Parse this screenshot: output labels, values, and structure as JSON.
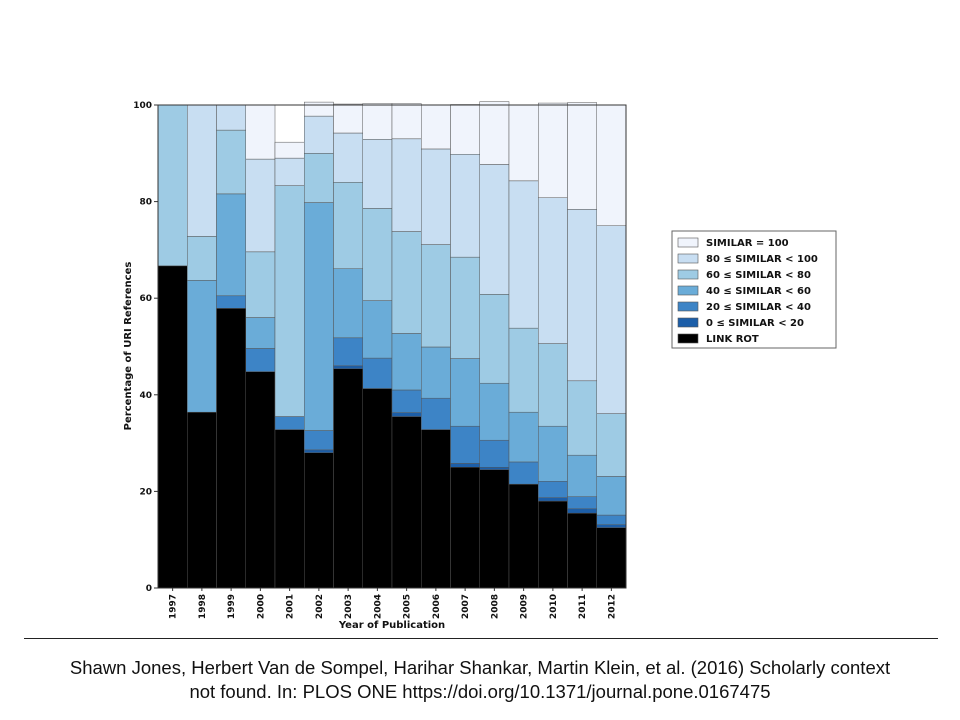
{
  "chart_data": {
    "type": "bar",
    "stacked": true,
    "xlabel": "Year of Publication",
    "ylabel": "Percentage of URI References",
    "ylim": [
      0,
      100
    ],
    "yticks": [
      0,
      20,
      40,
      60,
      80,
      100
    ],
    "categories": [
      "1997",
      "1998",
      "1999",
      "2000",
      "2001",
      "2002",
      "2003",
      "2004",
      "2005",
      "2006",
      "2007",
      "2008",
      "2009",
      "2010",
      "2011",
      "2012"
    ],
    "series": [
      {
        "name": "LINK ROT",
        "color": "#000000",
        "values": [
          66.7,
          36.4,
          57.9,
          44.8,
          32.8,
          28.0,
          45.4,
          41.3,
          35.5,
          32.8,
          25.0,
          24.5,
          21.5,
          18.0,
          15.5,
          12.5
        ]
      },
      {
        "name": "0 ≤ SIMILAR < 20",
        "color": "#1c5ea8",
        "values": [
          0.0,
          0.0,
          0.0,
          0.0,
          0.0,
          0.6,
          0.6,
          0.0,
          0.8,
          0.0,
          0.8,
          0.5,
          0.0,
          0.7,
          0.9,
          0.6
        ]
      },
      {
        "name": "20 ≤ SIMILAR < 40",
        "color": "#3d84c6",
        "values": [
          0.0,
          0.0,
          2.6,
          4.8,
          2.7,
          4.0,
          5.8,
          6.3,
          4.7,
          6.5,
          7.7,
          5.6,
          4.6,
          3.4,
          2.5,
          2.0
        ]
      },
      {
        "name": "40 ≤ SIMILAR < 60",
        "color": "#6aacd8",
        "values": [
          0.0,
          27.3,
          21.1,
          6.4,
          0.0,
          47.2,
          14.3,
          11.9,
          11.7,
          10.6,
          14.0,
          11.8,
          10.3,
          11.4,
          8.6,
          8.0
        ]
      },
      {
        "name": "60 ≤ SIMILAR < 80",
        "color": "#9ecbe4",
        "values": [
          33.3,
          9.1,
          13.2,
          13.6,
          47.8,
          10.2,
          17.9,
          19.1,
          21.1,
          21.2,
          21.0,
          18.4,
          17.4,
          17.1,
          15.4,
          13.0
        ]
      },
      {
        "name": "80 ≤ SIMILAR < 100",
        "color": "#c8def2",
        "values": [
          0.0,
          27.2,
          5.2,
          19.2,
          5.7,
          7.7,
          10.2,
          14.3,
          19.2,
          19.8,
          21.3,
          26.9,
          30.5,
          30.2,
          35.5,
          38.9
        ]
      },
      {
        "name": "SIMILAR = 100",
        "color": "#f0f4fc",
        "values": [
          0.0,
          0.0,
          0.0,
          11.2,
          3.3,
          2.9,
          6.0,
          7.4,
          7.3,
          9.1,
          10.3,
          13.0,
          15.7,
          19.6,
          22.1,
          25.0
        ]
      }
    ],
    "legend_order": [
      "SIMILAR = 100",
      "80 ≤ SIMILAR < 100",
      "60 ≤ SIMILAR < 80",
      "40 ≤ SIMILAR < 60",
      "20 ≤ SIMILAR < 40",
      "0 ≤ SIMILAR < 20",
      "LINK ROT"
    ],
    "legend_placement": "right",
    "grid": false
  },
  "caption": {
    "line1": "Shawn Jones, Herbert Van de Sompel, Harihar Shankar, Martin Klein, et al. (2016) Scholarly context",
    "line2": "not found. In: PLOS ONE https://doi.org/10.1371/journal.pone.0167475"
  }
}
